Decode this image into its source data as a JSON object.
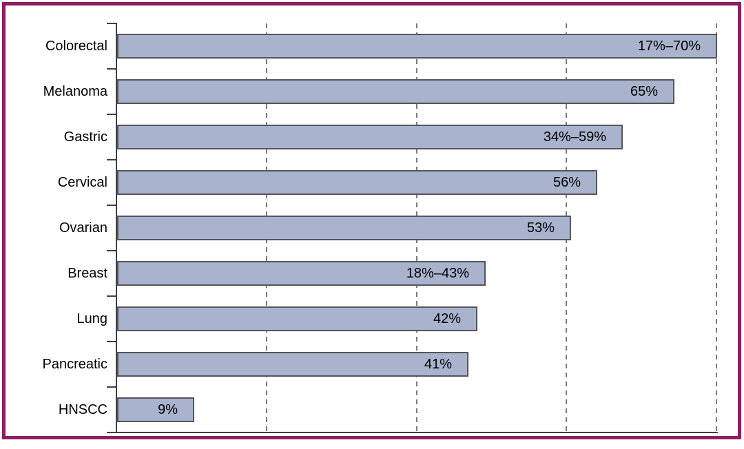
{
  "colors": {
    "frame_border": "#8a2061",
    "bar_fill": "#a9b3ce",
    "bar_border": "#54555a",
    "axis": "#3f3f41",
    "gridline": "#7a7a7a",
    "text": "#000000",
    "background": "#ffffff"
  },
  "chart_data": {
    "type": "bar",
    "orientation": "horizontal",
    "categories": [
      "Colorectal",
      "Melanoma",
      "Gastric",
      "Cervical",
      "Ovarian",
      "Breast",
      "Lung",
      "Pancreatic",
      "HNSCC"
    ],
    "values": [
      70,
      65,
      59,
      56,
      53,
      43,
      42,
      41,
      9
    ],
    "bar_labels": [
      "17%–70%",
      "65%",
      "34%–59%",
      "56%",
      "53%",
      "18%–43%",
      "42%",
      "41%",
      "9%"
    ],
    "xlim": [
      0,
      70
    ],
    "gridline_values": [
      17.5,
      35,
      52.5,
      70
    ],
    "grid": "vertical-dashed",
    "legend": "none",
    "x_tick_labels": "none",
    "value_label_position": "inside-right"
  }
}
